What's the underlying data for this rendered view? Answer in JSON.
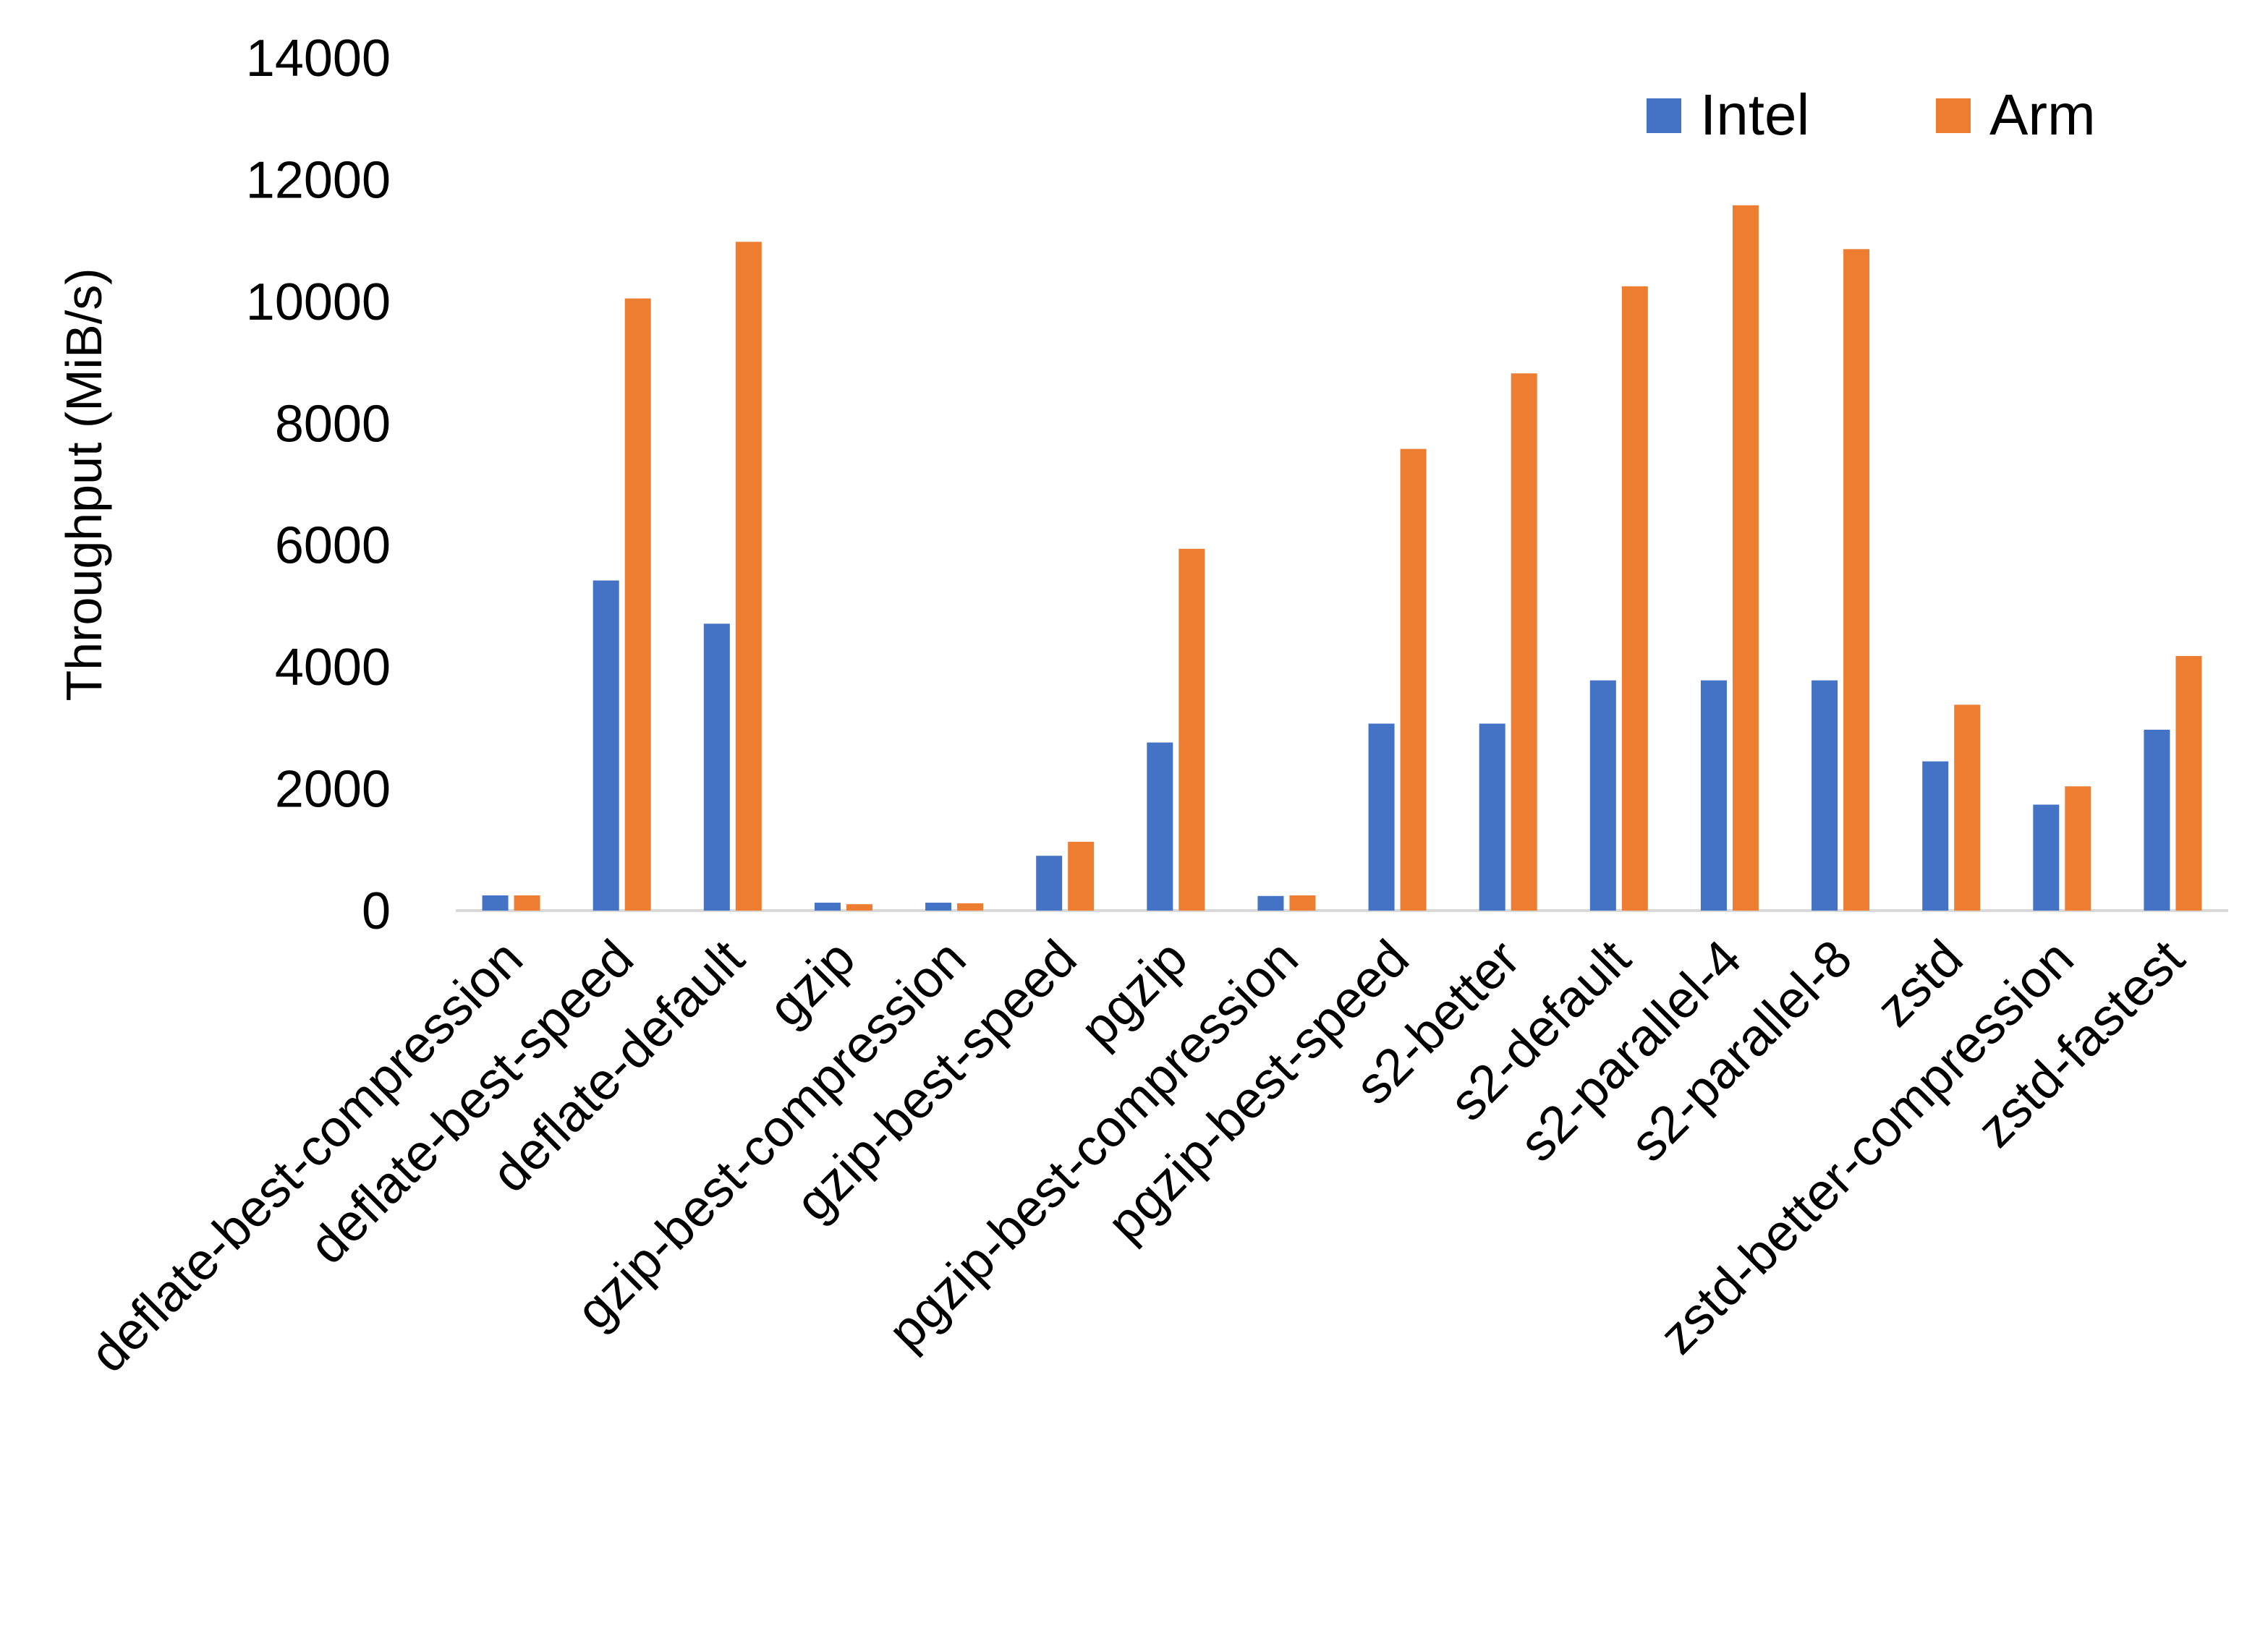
{
  "chart_data": {
    "type": "bar",
    "title": "",
    "xlabel": "",
    "ylabel": "Throughput (MiB/s)",
    "ylim": [
      0,
      14000
    ],
    "yticks": [
      0,
      2000,
      4000,
      6000,
      8000,
      10000,
      12000,
      14000
    ],
    "grid": false,
    "legend_position": "top-right",
    "categories": [
      "deflate-best-compression",
      "deflate-best-speed",
      "deflate-default",
      "gzip",
      "gzip-best-compression",
      "gzip-best-speed",
      "pgzip",
      "pgzip-best-compression",
      "pgzip-best-speed",
      "s2-better",
      "s2-default",
      "s2-parallel-4",
      "s2-parallel-8",
      "zstd",
      "zstd-better-compression",
      "zstd-fastest"
    ],
    "series": [
      {
        "name": "Intel",
        "color": "#4472C4",
        "values": [
          250,
          5420,
          4710,
          130,
          130,
          900,
          2760,
          240,
          3070,
          3070,
          3780,
          3780,
          3780,
          2450,
          1740,
          2970
        ]
      },
      {
        "name": "Arm",
        "color": "#ED7D31",
        "values": [
          250,
          10050,
          10980,
          105,
          120,
          1130,
          5940,
          250,
          7580,
          8820,
          10250,
          11580,
          10860,
          3380,
          2040,
          4180
        ]
      }
    ]
  }
}
